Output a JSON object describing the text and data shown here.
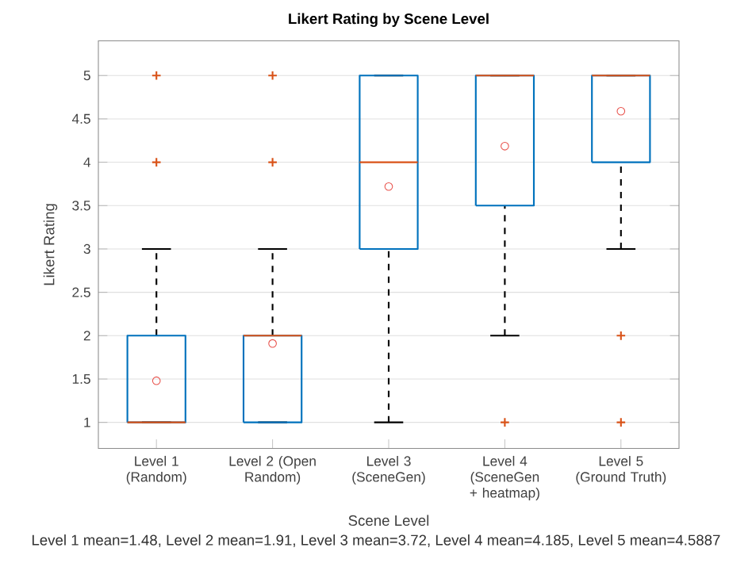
{
  "chart_data": {
    "type": "box",
    "title": "Likert Rating by Scene Level",
    "xlabel": "Scene Level",
    "ylabel": "Likert Rating",
    "categories": [
      "Level 1 (Random)",
      "Level 2 (Open Random)",
      "Level 3 (SceneGen)",
      "Level 4 (SceneGen + heatmap)",
      "Level 5 (Ground Truth)"
    ],
    "color": "#0072bd",
    "boxes": [
      {
        "low": 1,
        "q1": 1,
        "median": 1,
        "q3": 2,
        "high": 3,
        "mean": 1.48,
        "outliers": [
          4,
          5
        ]
      },
      {
        "low": 1,
        "q1": 1,
        "median": 2,
        "q3": 2,
        "high": 3,
        "mean": 1.91,
        "outliers": [
          4,
          5
        ]
      },
      {
        "low": 1,
        "q1": 3,
        "median": 4,
        "q3": 5,
        "high": 5,
        "mean": 3.72
      },
      {
        "low": 2,
        "q1": 3.5,
        "median": 5,
        "q3": 5,
        "high": 5,
        "mean": 4.185,
        "outliers": [
          1
        ]
      },
      {
        "low": 3,
        "q1": 4,
        "median": 5,
        "q3": 5,
        "high": 5,
        "mean": 4.5887,
        "outliers": [
          1,
          2
        ]
      }
    ],
    "ylim": [
      0.7,
      5.4
    ],
    "yticks": [
      1,
      1.5,
      2,
      2.5,
      3,
      3.5,
      4,
      4.5,
      5
    ],
    "grid": "y",
    "annotations": [
      "Level 1 mean=1.48, Level 2 mean=1.91, Level 3 mean=3.72, Level 4 mean=4.185, Level 5 mean=4.5887"
    ]
  }
}
